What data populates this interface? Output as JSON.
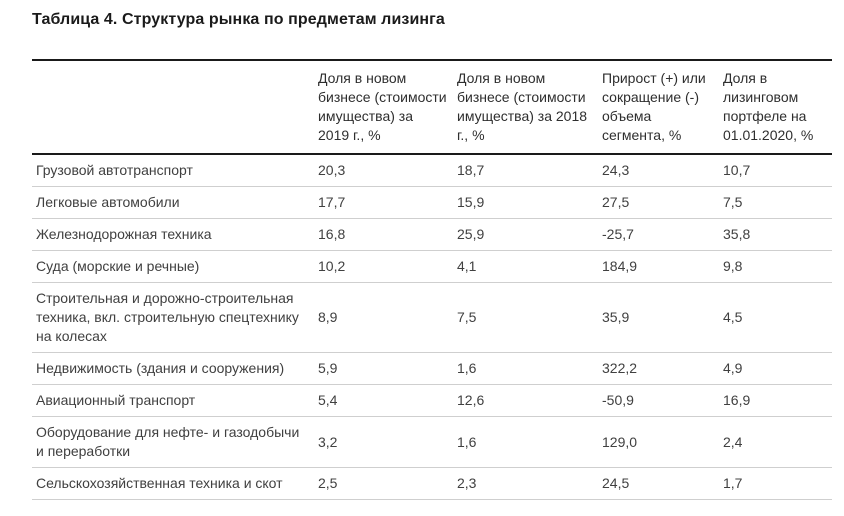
{
  "title": "Таблица 4. Структура рынка по предметам лизинга",
  "table": {
    "columns": [
      "",
      "Доля в новом бизнесе (стоимости имущества) за 2019 г., %",
      "Доля в новом бизнесе (стоимости имущества) за 2018 г., %",
      "Прирост (+) или сокращение (-) объема сегмента, %",
      "Доля в лизинговом портфеле на 01.01.2020, %"
    ],
    "rows": [
      {
        "label": "Грузовой автотранспорт",
        "values": [
          "20,3",
          "18,7",
          "24,3",
          "10,7"
        ]
      },
      {
        "label": "Легковые автомобили",
        "values": [
          "17,7",
          "15,9",
          "27,5",
          "7,5"
        ]
      },
      {
        "label": "Железнодорожная техника",
        "values": [
          "16,8",
          "25,9",
          "-25,7",
          "35,8"
        ]
      },
      {
        "label": "Суда (морские и речные)",
        "values": [
          "10,2",
          "4,1",
          "184,9",
          "9,8"
        ]
      },
      {
        "label": "Строительная и дорожно-строительная техника, вкл. строительную спецтехнику на колесах",
        "values": [
          "8,9",
          "7,5",
          "35,9",
          "4,5"
        ]
      },
      {
        "label": "Недвижимость (здания и сооружения)",
        "values": [
          "5,9",
          "1,6",
          "322,2",
          "4,9"
        ]
      },
      {
        "label": "Авиационный транспорт",
        "values": [
          "5,4",
          "12,6",
          "-50,9",
          "16,9"
        ]
      },
      {
        "label": "Оборудование для нефте- и газодобычи и переработки",
        "values": [
          "3,2",
          "1,6",
          "129,0",
          "2,4"
        ]
      },
      {
        "label": "Сельскохозяйственная техника и скот",
        "values": [
          "2,5",
          "2,3",
          "24,5",
          "1,7"
        ]
      }
    ]
  },
  "colors": {
    "title_text": "#1a1a1a",
    "header_text": "#2e2e2e",
    "body_text": "#404040",
    "thick_rule": "#1a1a1a",
    "thin_rule": "#cfcfcf",
    "background": "#ffffff"
  }
}
